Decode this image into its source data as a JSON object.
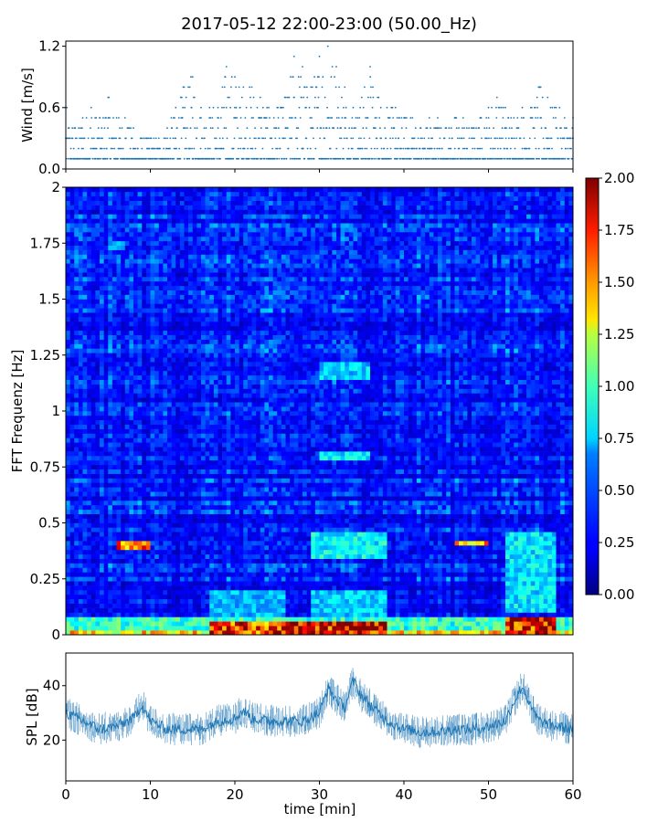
{
  "title": "2017-05-12 22:00-23:00 (50.00_Hz)",
  "chart_data": [
    {
      "type": "scatter",
      "name": "wind",
      "ylabel": "Wind [m/s]",
      "xlim": [
        0,
        60
      ],
      "ylim": [
        0,
        1.25
      ],
      "yticks": [
        {
          "value": 0.0,
          "label": "0.0"
        },
        {
          "value": 0.6,
          "label": "0.6"
        },
        {
          "value": 1.2,
          "label": "1.2"
        }
      ],
      "xticks": [
        0,
        10,
        20,
        30,
        40,
        50,
        60
      ],
      "quantization": 0.1,
      "color": "#1f77b4",
      "envelope": [
        [
          0,
          0.6
        ],
        [
          1,
          0.4
        ],
        [
          2,
          0.5
        ],
        [
          3,
          0.6
        ],
        [
          4,
          0.5
        ],
        [
          5,
          0.7
        ],
        [
          6,
          0.5
        ],
        [
          7,
          0.5
        ],
        [
          8,
          0.4
        ],
        [
          9,
          0.3
        ],
        [
          10,
          0.3
        ],
        [
          11,
          0.3
        ],
        [
          12,
          0.4
        ],
        [
          13,
          0.6
        ],
        [
          14,
          0.8
        ],
        [
          15,
          0.9
        ],
        [
          16,
          0.6
        ],
        [
          17,
          0.6
        ],
        [
          18,
          0.6
        ],
        [
          19,
          1.0
        ],
        [
          20,
          0.9
        ],
        [
          21,
          0.8
        ],
        [
          22,
          0.8
        ],
        [
          23,
          0.7
        ],
        [
          24,
          0.6
        ],
        [
          25,
          0.6
        ],
        [
          26,
          0.7
        ],
        [
          27,
          1.1
        ],
        [
          28,
          1.0
        ],
        [
          29,
          0.8
        ],
        [
          30,
          1.1
        ],
        [
          31,
          1.2
        ],
        [
          32,
          1.0
        ],
        [
          33,
          0.8
        ],
        [
          34,
          0.6
        ],
        [
          35,
          0.7
        ],
        [
          36,
          1.0
        ],
        [
          37,
          0.7
        ],
        [
          38,
          0.6
        ],
        [
          39,
          0.6
        ],
        [
          40,
          0.5
        ],
        [
          41,
          0.5
        ],
        [
          42,
          0.4
        ],
        [
          43,
          0.5
        ],
        [
          44,
          0.5
        ],
        [
          45,
          0.4
        ],
        [
          46,
          0.5
        ],
        [
          47,
          0.5
        ],
        [
          48,
          0.4
        ],
        [
          49,
          0.5
        ],
        [
          50,
          0.6
        ],
        [
          51,
          0.7
        ],
        [
          52,
          0.6
        ],
        [
          53,
          0.5
        ],
        [
          54,
          0.6
        ],
        [
          55,
          0.6
        ],
        [
          56,
          0.8
        ],
        [
          57,
          0.7
        ],
        [
          58,
          0.6
        ],
        [
          59,
          0.5
        ],
        [
          60,
          0.5
        ]
      ]
    },
    {
      "type": "heatmap",
      "name": "spectrogram",
      "ylabel": "FFT Frequenz [Hz]",
      "xlim": [
        0,
        60
      ],
      "ylim": [
        0,
        2
      ],
      "yticks": [
        {
          "value": 0,
          "label": "0"
        },
        {
          "value": 0.25,
          "label": "0.25"
        },
        {
          "value": 0.5,
          "label": "0.5"
        },
        {
          "value": 0.75,
          "label": "0.75"
        },
        {
          "value": 1,
          "label": "1"
        },
        {
          "value": 1.25,
          "label": "1.25"
        },
        {
          "value": 1.5,
          "label": "1.5"
        },
        {
          "value": 1.75,
          "label": "1.75"
        },
        {
          "value": 2,
          "label": "2"
        }
      ],
      "colormap": "jet",
      "colorbar": {
        "range": [
          0,
          2
        ],
        "ticks": [
          "0.00",
          "0.25",
          "0.50",
          "0.75",
          "1.00",
          "1.25",
          "1.50",
          "1.75",
          "2.00"
        ]
      },
      "time_bins": 120,
      "freq_bins": 100,
      "background_level": 0.3,
      "features": [
        {
          "t0": 0,
          "t1": 60,
          "f0": 0,
          "f1": 0.08,
          "level": 0.9
        },
        {
          "t0": 0,
          "t1": 60,
          "f0": 0,
          "f1": 0.02,
          "level": 1.4
        },
        {
          "t0": 17,
          "t1": 26,
          "f0": 0,
          "f1": 0.06,
          "level": 1.8
        },
        {
          "t0": 26,
          "t1": 38,
          "f0": 0,
          "f1": 0.05,
          "level": 2.0
        },
        {
          "t0": 52,
          "t1": 58,
          "f0": 0,
          "f1": 0.08,
          "level": 1.9
        },
        {
          "t0": 6,
          "t1": 10,
          "f0": 0.39,
          "f1": 0.42,
          "level": 1.6
        },
        {
          "t0": 46,
          "t1": 50,
          "f0": 0.4,
          "f1": 0.42,
          "level": 1.5
        },
        {
          "t0": 29,
          "t1": 38,
          "f0": 0.35,
          "f1": 0.45,
          "level": 0.8
        },
        {
          "t0": 30,
          "t1": 36,
          "f0": 0.78,
          "f1": 0.82,
          "level": 0.75
        },
        {
          "t0": 30,
          "t1": 36,
          "f0": 1.15,
          "f1": 1.22,
          "level": 0.7
        },
        {
          "t0": 52,
          "t1": 58,
          "f0": 0.1,
          "f1": 0.45,
          "level": 0.75
        },
        {
          "t0": 29,
          "t1": 38,
          "f0": 0.08,
          "f1": 0.2,
          "level": 0.7
        },
        {
          "t0": 17,
          "t1": 26,
          "f0": 0.08,
          "f1": 0.2,
          "level": 0.65
        },
        {
          "t0": 5,
          "t1": 7,
          "f0": 1.73,
          "f1": 1.76,
          "level": 0.6
        }
      ]
    },
    {
      "type": "line",
      "name": "spl",
      "xlabel": "time [min]",
      "ylabel": "SPL [dB]",
      "xlim": [
        0,
        60
      ],
      "ylim": [
        5,
        52
      ],
      "xticks": [
        {
          "value": 0,
          "label": "0"
        },
        {
          "value": 10,
          "label": "10"
        },
        {
          "value": 20,
          "label": "20"
        },
        {
          "value": 30,
          "label": "30"
        },
        {
          "value": 40,
          "label": "40"
        },
        {
          "value": 50,
          "label": "50"
        },
        {
          "value": 60,
          "label": "60"
        }
      ],
      "yticks": [
        {
          "value": 20,
          "label": "20"
        },
        {
          "value": 40,
          "label": "40"
        }
      ],
      "color": "#1f77b4",
      "mean_curve": [
        [
          0,
          30
        ],
        [
          2,
          27
        ],
        [
          4,
          24
        ],
        [
          6,
          25
        ],
        [
          8,
          28
        ],
        [
          9,
          33
        ],
        [
          10,
          27
        ],
        [
          12,
          24
        ],
        [
          14,
          24
        ],
        [
          16,
          24
        ],
        [
          18,
          27
        ],
        [
          20,
          28
        ],
        [
          21,
          31
        ],
        [
          22,
          28
        ],
        [
          24,
          27
        ],
        [
          26,
          27
        ],
        [
          28,
          27
        ],
        [
          30,
          30
        ],
        [
          31,
          39
        ],
        [
          32,
          35
        ],
        [
          33,
          32
        ],
        [
          34,
          42
        ],
        [
          35,
          36
        ],
        [
          37,
          30
        ],
        [
          38,
          27
        ],
        [
          40,
          24
        ],
        [
          42,
          23
        ],
        [
          44,
          23
        ],
        [
          46,
          24
        ],
        [
          48,
          24
        ],
        [
          50,
          25
        ],
        [
          52,
          27
        ],
        [
          53,
          34
        ],
        [
          54,
          40
        ],
        [
          55,
          32
        ],
        [
          56,
          27
        ],
        [
          58,
          25
        ],
        [
          60,
          24
        ]
      ],
      "noise_spread_db": 6
    }
  ]
}
